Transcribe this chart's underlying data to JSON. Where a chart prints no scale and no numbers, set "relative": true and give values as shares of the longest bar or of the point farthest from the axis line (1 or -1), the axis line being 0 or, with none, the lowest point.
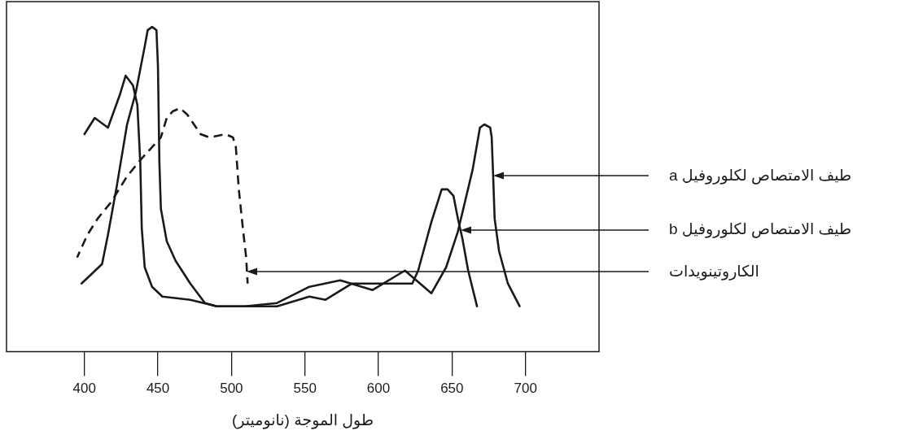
{
  "chart_data": {
    "type": "line",
    "relative": true,
    "line_style": "solid",
    "xlabel": "طول الموجة (نانوميتر)",
    "xlim": [
      347,
      750
    ],
    "xticks": [
      400,
      450,
      500,
      550,
      600,
      650,
      700
    ],
    "series": [
      {
        "color": "#1a1a1a",
        "x": [
          400,
          407,
          416,
          424,
          428,
          433,
          436,
          438,
          439,
          441,
          446,
          453,
          472,
          490,
          509,
          531,
          553,
          574,
          596,
          618,
          636,
          646,
          654,
          664,
          669,
          672,
          676,
          677,
          678,
          679,
          682,
          688,
          696
        ],
        "values": [
          0.67,
          0.72,
          0.69,
          0.79,
          0.85,
          0.82,
          0.76,
          0.58,
          0.38,
          0.26,
          0.2,
          0.17,
          0.16,
          0.14,
          0.14,
          0.15,
          0.2,
          0.22,
          0.19,
          0.25,
          0.18,
          0.26,
          0.37,
          0.56,
          0.69,
          0.7,
          0.69,
          0.66,
          0.54,
          0.41,
          0.31,
          0.21,
          0.14
        ]
      },
      {
        "color": "#1a1a1a",
        "x": [
          398,
          412,
          416,
          422,
          429,
          435,
          441,
          443,
          446,
          449,
          450,
          451,
          452,
          456,
          462,
          472,
          482,
          490,
          509,
          531,
          553,
          564,
          582,
          608,
          623,
          627,
          636,
          643,
          647,
          651,
          654,
          657,
          661,
          667
        ],
        "values": [
          0.21,
          0.27,
          0.36,
          0.51,
          0.7,
          0.8,
          0.94,
          0.99,
          1,
          0.99,
          0.88,
          0.58,
          0.44,
          0.34,
          0.28,
          0.21,
          0.15,
          0.14,
          0.14,
          0.14,
          0.17,
          0.16,
          0.21,
          0.21,
          0.21,
          0.25,
          0.4,
          0.5,
          0.5,
          0.48,
          0.41,
          0.35,
          0.25,
          0.14
        ]
      },
      {
        "color": "#1a1a1a",
        "line_style": "dashed",
        "x": [
          395,
          402,
          409,
          418,
          429,
          438,
          452,
          456,
          460,
          465,
          470,
          479,
          485,
          496,
          501,
          503,
          505,
          508,
          510,
          511
        ],
        "values": [
          0.29,
          0.36,
          0.41,
          0.46,
          0.54,
          0.59,
          0.66,
          0.72,
          0.74,
          0.75,
          0.73,
          0.67,
          0.66,
          0.67,
          0.66,
          0.63,
          0.5,
          0.37,
          0.29,
          0.21
        ]
      }
    ],
    "annotations": [
      "طيف الامتصاص لكلوروفيل a",
      "طيف الامتصاص لكلوروفيل b",
      "الكاروتينويدات"
    ]
  }
}
